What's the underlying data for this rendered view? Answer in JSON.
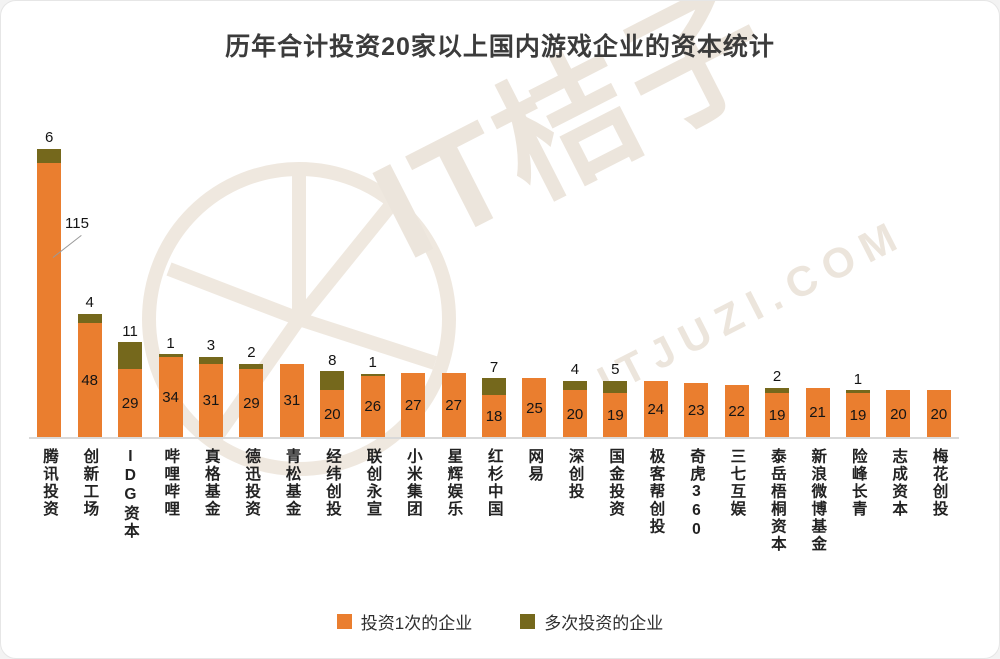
{
  "watermark": {
    "logo_text": "IT桔子",
    "url_text": "ITJUZI.COM"
  },
  "colors": {
    "single": "#EA7E2F",
    "multi": "#75681C",
    "axis": "#D9D9D9",
    "watermark": "#ECE5DC"
  },
  "legend": {
    "items": [
      {
        "label": "投资1次的企业",
        "color": "#EA7E2F"
      },
      {
        "label": "多次投资的企业",
        "color": "#75681C"
      }
    ]
  },
  "chart_data": {
    "type": "bar",
    "stacked": true,
    "title": "历年合计投资20家以上国内游戏企业的资本统计",
    "categories": [
      "腾讯投资",
      "创新工场",
      "IDG资本",
      "哔哩哔哩",
      "真格基金",
      "德迅投资",
      "青松基金",
      "经纬创投",
      "联创永宣",
      "小米集团",
      "星辉娱乐",
      "红杉中国",
      "网易",
      "深创投",
      "国金投资",
      "极客帮创投",
      "奇虎360",
      "三七互娱",
      "泰岳梧桐资本",
      "新浪微博基金",
      "险峰长青",
      "志成资本",
      "梅花创投"
    ],
    "series": [
      {
        "name": "投资1次的企业",
        "color": "#EA7E2F",
        "values": [
          115,
          48,
          29,
          34,
          31,
          29,
          31,
          20,
          26,
          27,
          27,
          18,
          25,
          20,
          19,
          24,
          23,
          22,
          19,
          21,
          19,
          20,
          20
        ]
      },
      {
        "name": "多次投资的企业",
        "color": "#75681C",
        "values": [
          6,
          4,
          11,
          1,
          3,
          2,
          0,
          8,
          1,
          0,
          0,
          7,
          0,
          4,
          5,
          0,
          0,
          0,
          2,
          0,
          1,
          0,
          0
        ]
      }
    ],
    "ylim": [
      0,
      125
    ],
    "grid": false,
    "legend_position": "bottom",
    "value_labels": true
  }
}
